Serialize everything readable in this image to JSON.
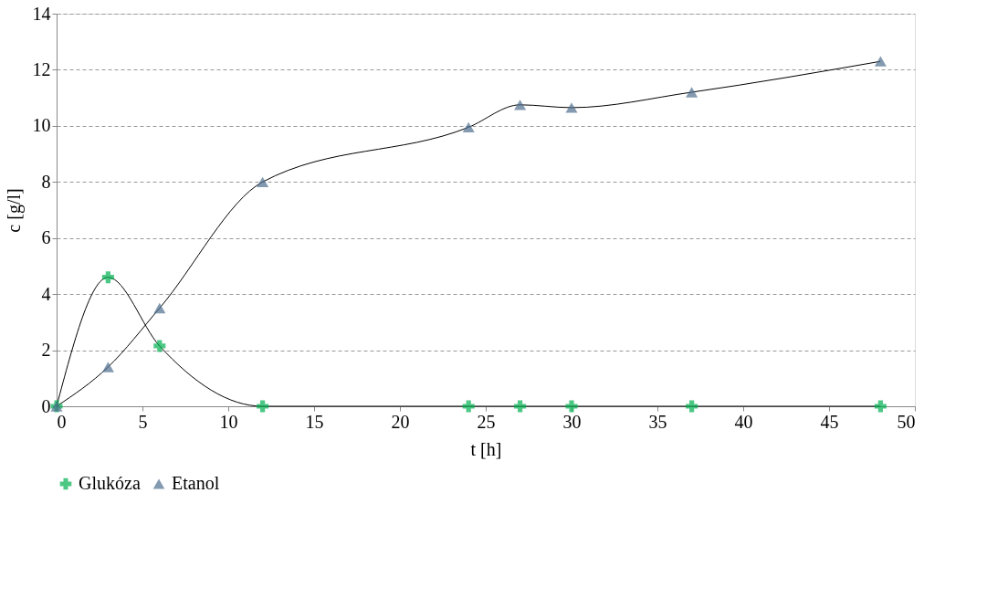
{
  "chart_data": {
    "type": "line",
    "xlabel": "t [h]",
    "ylabel": "c [g/l]",
    "x": [
      0,
      3,
      6,
      12,
      24,
      27,
      30,
      37,
      48
    ],
    "series": [
      {
        "name": "Glukóza",
        "color": "#00b050",
        "marker": "cross",
        "values": [
          0,
          4.6,
          2.15,
          0,
          0,
          0,
          0,
          0,
          0
        ]
      },
      {
        "name": "Etanol",
        "color": "#4f6f8f",
        "marker": "triangle",
        "values": [
          0,
          1.4,
          3.5,
          8.0,
          9.95,
          10.75,
          10.65,
          11.2,
          12.3
        ]
      }
    ],
    "xlim": [
      0,
      50
    ],
    "xticks": [
      0,
      5,
      10,
      15,
      20,
      25,
      30,
      35,
      40,
      45,
      50
    ],
    "ylim": [
      0,
      14
    ],
    "yticks": [
      0,
      2,
      4,
      6,
      8,
      10,
      12,
      14
    ],
    "grid": "y",
    "legend": "bottom",
    "line_style": "solid"
  }
}
